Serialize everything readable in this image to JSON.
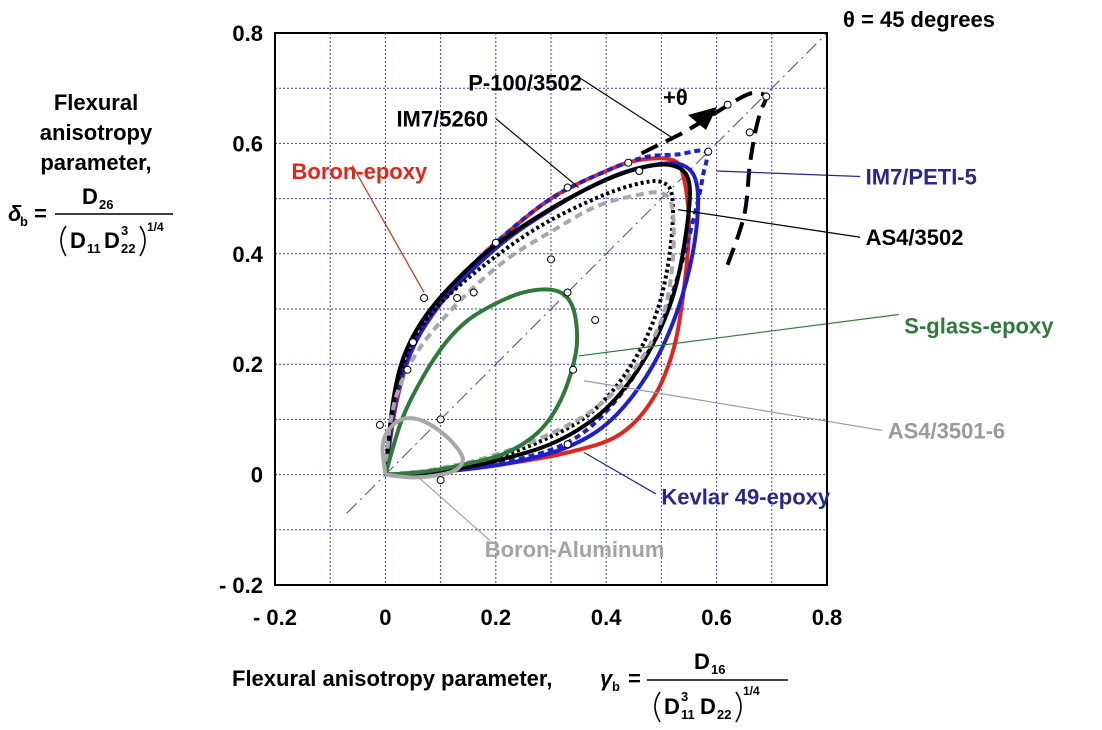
{
  "chart_data": {
    "type": "line",
    "xlim": [
      -0.2,
      0.8
    ],
    "ylim": [
      -0.2,
      0.8
    ],
    "grid": true,
    "xticks": [
      "- 0.2",
      "0",
      "0.2",
      "0.4",
      "0.6",
      "0.8"
    ],
    "yticks": [
      "0.8",
      "0.6",
      "0.4",
      "0.2",
      "0",
      "- 0.2"
    ],
    "xlabel": "Flexural anisotropy parameter,",
    "xlabel_symbol": "γ",
    "xlabel_sub": "b",
    "ylabel_lines": [
      "Flexural",
      "anisotropy",
      "parameter,"
    ],
    "ylabel_symbol": "δ",
    "ylabel_sub": "b",
    "x_formula": {
      "num": "D",
      "num_sub": "16",
      "den_a": "D",
      "den_a_sup": "3",
      "den_a_sub": "11",
      "den_b": "D",
      "den_b_sub": "22",
      "exp": "1/4"
    },
    "y_formula": {
      "num": "D",
      "num_sub": "26",
      "den_a": "D",
      "den_a_sub": "11",
      "den_b": "D",
      "den_b_sup": "3",
      "den_b_sub": "22",
      "exp": "1/4"
    },
    "equals": "=",
    "reference_line_label": "θ = 45 degrees",
    "theta_label": "+θ",
    "series": [
      {
        "name": "Boron-epoxy",
        "color": "#e0261b",
        "dash": "solid",
        "label": {
          "x": -0.17,
          "y": 0.55,
          "color": "#e0261b",
          "anchor": "start"
        },
        "leader": [
          [
            -0.06,
            0.56
          ],
          [
            0.07,
            0.33
          ]
        ],
        "points": [
          [
            0,
            0
          ],
          [
            0.02,
            0.13
          ],
          [
            0.05,
            0.23
          ],
          [
            0.1,
            0.31
          ],
          [
            0.15,
            0.37
          ],
          [
            0.2,
            0.42
          ],
          [
            0.3,
            0.5
          ],
          [
            0.4,
            0.55
          ],
          [
            0.46,
            0.57
          ],
          [
            0.52,
            0.57
          ],
          [
            0.54,
            0.54
          ],
          [
            0.55,
            0.45
          ],
          [
            0.54,
            0.33
          ],
          [
            0.52,
            0.22
          ],
          [
            0.48,
            0.13
          ],
          [
            0.42,
            0.07
          ],
          [
            0.33,
            0.04
          ],
          [
            0.22,
            0.02
          ],
          [
            0.1,
            0.005
          ],
          [
            0,
            0
          ]
        ],
        "markers": [
          [
            0.07,
            0.32
          ],
          [
            0.33,
            0.055
          ]
        ]
      },
      {
        "name": "IM7/PETI-5",
        "color": "#1f1fcc",
        "dash": "6,4",
        "label": {
          "x": 0.87,
          "y": 0.54,
          "color": "#27278f",
          "anchor": "start"
        },
        "leader": [
          [
            0.86,
            0.54
          ],
          [
            0.6,
            0.55
          ]
        ],
        "points": [
          [
            0,
            0
          ],
          [
            0.02,
            0.15
          ],
          [
            0.05,
            0.24
          ],
          [
            0.1,
            0.32
          ],
          [
            0.2,
            0.42
          ],
          [
            0.3,
            0.5
          ],
          [
            0.4,
            0.55
          ],
          [
            0.47,
            0.575
          ],
          [
            0.53,
            0.58
          ],
          [
            0.58,
            0.585
          ],
          [
            0.575,
            0.54
          ],
          [
            0.56,
            0.47
          ],
          [
            0.53,
            0.36
          ],
          [
            0.49,
            0.25
          ],
          [
            0.43,
            0.15
          ],
          [
            0.35,
            0.07
          ],
          [
            0.25,
            0.03
          ],
          [
            0.12,
            0.01
          ],
          [
            0,
            0
          ]
        ],
        "markers": [
          [
            0.585,
            0.585
          ],
          [
            0.44,
            0.565
          ]
        ]
      },
      {
        "name": "Kevlar 49-epoxy",
        "color": "#1f1fcc",
        "dash": "solid",
        "label": {
          "x": 0.5,
          "y": -0.04,
          "color": "#27278f",
          "anchor": "start"
        },
        "leader": [
          [
            0.49,
            -0.035
          ],
          [
            0.36,
            0.04
          ]
        ],
        "points": [
          [
            0,
            0
          ],
          [
            0.02,
            0.14
          ],
          [
            0.05,
            0.23
          ],
          [
            0.1,
            0.31
          ],
          [
            0.2,
            0.41
          ],
          [
            0.3,
            0.48
          ],
          [
            0.4,
            0.535
          ],
          [
            0.48,
            0.56
          ],
          [
            0.54,
            0.56
          ],
          [
            0.565,
            0.52
          ],
          [
            0.56,
            0.42
          ],
          [
            0.53,
            0.3
          ],
          [
            0.48,
            0.19
          ],
          [
            0.41,
            0.1
          ],
          [
            0.33,
            0.05
          ],
          [
            0.22,
            0.02
          ],
          [
            0.1,
            0.005
          ],
          [
            0,
            0
          ]
        ],
        "markers": [
          [
            0.05,
            0.24
          ],
          [
            0.2,
            0.42
          ]
        ]
      },
      {
        "name": "AS4/3502",
        "color": "#000000",
        "dash": "solid",
        "label": {
          "x": 0.87,
          "y": 0.43,
          "color": "#000000",
          "anchor": "start"
        },
        "leader": [
          [
            0.86,
            0.43
          ],
          [
            0.53,
            0.48
          ]
        ],
        "points": [
          [
            0,
            0
          ],
          [
            0.015,
            0.14
          ],
          [
            0.04,
            0.23
          ],
          [
            0.09,
            0.31
          ],
          [
            0.18,
            0.4
          ],
          [
            0.28,
            0.47
          ],
          [
            0.38,
            0.525
          ],
          [
            0.46,
            0.555
          ],
          [
            0.52,
            0.56
          ],
          [
            0.55,
            0.53
          ],
          [
            0.545,
            0.44
          ],
          [
            0.52,
            0.32
          ],
          [
            0.47,
            0.21
          ],
          [
            0.4,
            0.12
          ],
          [
            0.31,
            0.06
          ],
          [
            0.2,
            0.025
          ],
          [
            0.09,
            0.005
          ],
          [
            0,
            0
          ]
        ],
        "markers": [
          [
            0.33,
            0.52
          ],
          [
            0.46,
            0.55
          ]
        ]
      },
      {
        "name": "IM7/5260",
        "color": "#000000",
        "dash": "3,3",
        "label": {
          "x": 0.02,
          "y": 0.645,
          "color": "#000000",
          "anchor": "start"
        },
        "leader": [
          [
            0.2,
            0.645
          ],
          [
            0.35,
            0.52
          ]
        ],
        "points": [
          [
            0,
            0
          ],
          [
            0.015,
            0.13
          ],
          [
            0.04,
            0.22
          ],
          [
            0.09,
            0.3
          ],
          [
            0.18,
            0.38
          ],
          [
            0.28,
            0.45
          ],
          [
            0.38,
            0.5
          ],
          [
            0.45,
            0.525
          ],
          [
            0.5,
            0.53
          ],
          [
            0.52,
            0.5
          ],
          [
            0.515,
            0.4
          ],
          [
            0.49,
            0.29
          ],
          [
            0.44,
            0.19
          ],
          [
            0.37,
            0.11
          ],
          [
            0.28,
            0.06
          ],
          [
            0.18,
            0.025
          ],
          [
            0.08,
            0.005
          ],
          [
            0,
            0
          ]
        ],
        "markers": [
          [
            0.3,
            0.39
          ],
          [
            0.38,
            0.28
          ]
        ]
      },
      {
        "name": "AS4/3501-6",
        "color": "#a8a8a8",
        "dash": "8,5",
        "label": {
          "x": 0.91,
          "y": 0.08,
          "color": "#9a9a9a",
          "anchor": "start"
        },
        "leader": [
          [
            0.9,
            0.08
          ],
          [
            0.36,
            0.17
          ]
        ],
        "points": [
          [
            0,
            0
          ],
          [
            0.01,
            0.1
          ],
          [
            0.03,
            0.17
          ],
          [
            0.07,
            0.24
          ],
          [
            0.14,
            0.32
          ],
          [
            0.22,
            0.39
          ],
          [
            0.3,
            0.44
          ],
          [
            0.38,
            0.485
          ],
          [
            0.45,
            0.505
          ],
          [
            0.5,
            0.51
          ],
          [
            0.52,
            0.48
          ],
          [
            0.52,
            0.38
          ],
          [
            0.5,
            0.28
          ],
          [
            0.45,
            0.19
          ],
          [
            0.38,
            0.12
          ],
          [
            0.29,
            0.07
          ],
          [
            0.18,
            0.03
          ],
          [
            0.08,
            0.008
          ],
          [
            0,
            0
          ]
        ],
        "markers": [
          [
            0.04,
            0.19
          ],
          [
            0.13,
            0.32
          ]
        ]
      },
      {
        "name": "S-glass-epoxy",
        "color": "#2e7a3a",
        "dash": "solid",
        "label": {
          "x": 0.94,
          "y": 0.27,
          "color": "#2e7a3a",
          "anchor": "start"
        },
        "leader": [
          [
            0.93,
            0.29
          ],
          [
            0.35,
            0.215
          ]
        ],
        "points": [
          [
            0,
            0
          ],
          [
            0.03,
            0.1
          ],
          [
            0.07,
            0.18
          ],
          [
            0.11,
            0.24
          ],
          [
            0.15,
            0.28
          ],
          [
            0.2,
            0.31
          ],
          [
            0.25,
            0.33
          ],
          [
            0.3,
            0.335
          ],
          [
            0.33,
            0.32
          ],
          [
            0.345,
            0.28
          ],
          [
            0.345,
            0.22
          ],
          [
            0.32,
            0.14
          ],
          [
            0.28,
            0.08
          ],
          [
            0.22,
            0.04
          ],
          [
            0.15,
            0.02
          ],
          [
            0.07,
            0.005
          ],
          [
            0,
            0
          ]
        ],
        "markers": [
          [
            0.16,
            0.33
          ],
          [
            0.33,
            0.33
          ],
          [
            0.34,
            0.19
          ]
        ]
      },
      {
        "name": "Boron-Aluminum",
        "color": "#a8a8a8",
        "dash": "solid",
        "label": {
          "x": 0.18,
          "y": -0.135,
          "color": "#a3a3a3",
          "anchor": "start"
        },
        "leader": [
          [
            0.19,
            -0.12
          ],
          [
            0.06,
            -0.005
          ]
        ],
        "points": [
          [
            0,
            0
          ],
          [
            -0.005,
            0.05
          ],
          [
            0.005,
            0.08
          ],
          [
            0.03,
            0.1
          ],
          [
            0.06,
            0.1
          ],
          [
            0.09,
            0.085
          ],
          [
            0.12,
            0.06
          ],
          [
            0.14,
            0.03
          ],
          [
            0.13,
            0.01
          ],
          [
            0.1,
            0.0
          ],
          [
            0.05,
            -0.005
          ],
          [
            0,
            0
          ]
        ],
        "markers": [
          [
            -0.01,
            0.09
          ],
          [
            0.1,
            0.1
          ],
          [
            0.1,
            -0.01
          ]
        ]
      },
      {
        "name": "P-100/3502",
        "color": "#000000",
        "dash": "18,9",
        "label": {
          "x": 0.15,
          "y": 0.71,
          "color": "#000000",
          "anchor": "start"
        },
        "leader": [
          [
            0.35,
            0.72
          ],
          [
            0.52,
            0.61
          ]
        ],
        "points": [
          [
            0.62,
            0.38
          ],
          [
            0.65,
            0.47
          ],
          [
            0.66,
            0.56
          ],
          [
            0.67,
            0.62
          ],
          [
            0.68,
            0.66
          ],
          [
            0.685,
            0.67
          ],
          [
            0.69,
            0.685
          ],
          [
            0.68,
            0.69
          ],
          [
            0.66,
            0.69
          ],
          [
            0.63,
            0.675
          ],
          [
            0.59,
            0.65
          ],
          [
            0.54,
            0.62
          ],
          [
            0.48,
            0.59
          ],
          [
            0.45,
            0.575
          ]
        ],
        "markers": [
          [
            0.62,
            0.67
          ],
          [
            0.66,
            0.62
          ],
          [
            0.69,
            0.685
          ]
        ]
      }
    ]
  }
}
